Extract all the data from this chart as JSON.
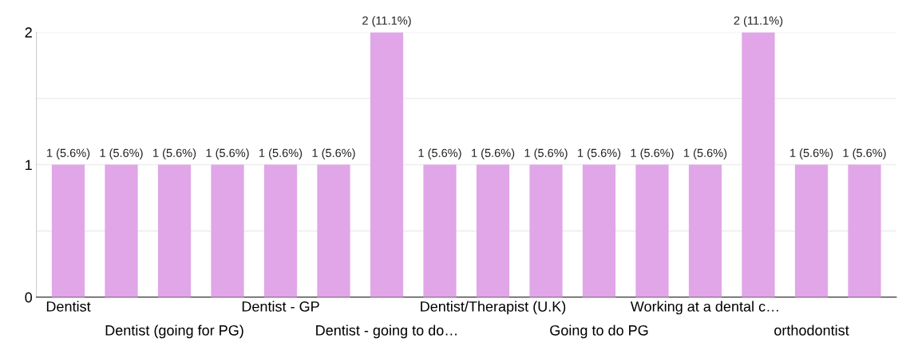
{
  "chart_data": {
    "type": "bar",
    "categories": [
      "Dentist",
      null,
      "Dentist (going for PG)",
      null,
      "Dentist - GP",
      null,
      "Dentist - going to do…",
      null,
      "Dentist/Therapist (U.K)",
      null,
      "Going to do PG",
      null,
      "Working at a dental c…",
      null,
      "orthodontist",
      null
    ],
    "values": [
      1,
      1,
      1,
      1,
      1,
      1,
      2,
      1,
      1,
      1,
      1,
      1,
      1,
      2,
      1,
      1
    ],
    "value_labels": [
      "1 (5.6%)",
      "1 (5.6%)",
      "1 (5.6%)",
      "1 (5.6%)",
      "1 (5.6%)",
      "1 (5.6%)",
      "2 (11.1%)",
      "1 (5.6%)",
      "1 (5.6%)",
      "1 (5.6%)",
      "1 (5.6%)",
      "1 (5.6%)",
      "1 (5.6%)",
      "2 (11.1%)",
      "1 (5.6%)",
      "1 (5.6%)"
    ],
    "color": "#e0a6e8",
    "ylim": [
      0,
      2
    ],
    "yticks": [
      0,
      {
        "value": 0.5,
        "label": null
      },
      1,
      {
        "value": 1.5,
        "label": null
      },
      2
    ],
    "grid": "y"
  }
}
